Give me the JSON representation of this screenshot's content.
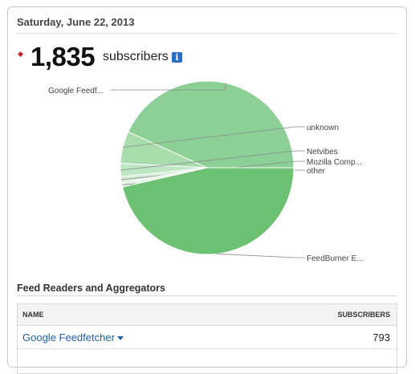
{
  "header": {
    "date": "Saturday, June 22, 2013"
  },
  "summary": {
    "count": "1,835",
    "count_label": "subscribers",
    "info_icon": "info-icon",
    "info_glyph": "i"
  },
  "chart_data": {
    "type": "pie",
    "slices": [
      {
        "label": "Google Feedf...",
        "value": 793,
        "color": "#8dd095"
      },
      {
        "label": "unknown",
        "value": 110,
        "color": "#a8dcad"
      },
      {
        "label": "Netvibes",
        "value": 45,
        "color": "#bfe6c2"
      },
      {
        "label": "Mozilla Comp...",
        "value": 20,
        "color": "#d3eed5"
      },
      {
        "label": "other",
        "value": 15,
        "color": "#e4f4e5"
      },
      {
        "label": "FeedBurner E...",
        "value": 852,
        "color": "#6cc272"
      }
    ]
  },
  "section": {
    "title": "Feed Readers and Aggregators"
  },
  "table": {
    "columns": [
      "NAME",
      "SUBSCRIBERS"
    ],
    "rows": [
      {
        "name": "Google Feedfetcher",
        "subscribers": "793"
      }
    ]
  }
}
